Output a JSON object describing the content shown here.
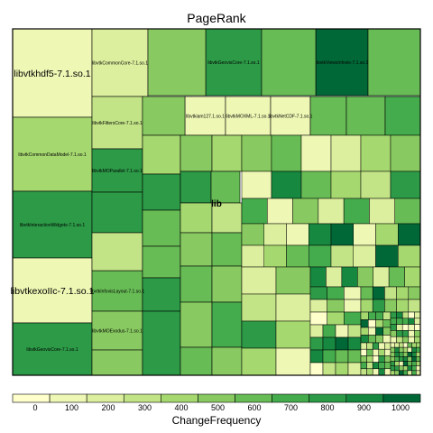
{
  "chart_data": {
    "type": "treemap",
    "title": "PageRank",
    "root_label": "lib",
    "size_metric": "PageRank",
    "color_metric": "ChangeFrequency",
    "legend": {
      "title": "ChangeFrequency",
      "ticks": [
        "0",
        "100",
        "200",
        "300",
        "400",
        "500",
        "600",
        "700",
        "800",
        "900",
        "1000"
      ],
      "colors": [
        "#ffffcc",
        "#eef7b4",
        "#dcef9e",
        "#c2e487",
        "#a6d870",
        "#88ca61",
        "#67bc55",
        "#45ac4d",
        "#2c9a47",
        "#16883f",
        "#006837"
      ],
      "position": "bottom"
    },
    "labeled_cells": [
      {
        "name": "libvtkhdf5-7.1.so.1",
        "change_frequency": 50
      },
      {
        "name": "libvtkCommonDataModel-7.1.so.1",
        "change_frequency": 350
      },
      {
        "name": "libvtkInteractionWidgets-7.1.so.1",
        "change_frequency": 800
      },
      {
        "name": "libvtkexoIIc-7.1.so.1",
        "change_frequency": 50
      },
      {
        "name": "libvtkGeovisCore-7.1.so.1",
        "change_frequency": 780
      },
      {
        "name": "libvtkCommonCore-7.1.so.1",
        "change_frequency": 150
      },
      {
        "name": "libvtkFiltersCore-7.1.so.1",
        "change_frequency": 250
      },
      {
        "name": "libvtkMOParallel-7.1.so.1",
        "change_frequency": 780
      },
      {
        "name": "libvtkInfovisLayout-7.1.so.1",
        "change_frequency": 600
      },
      {
        "name": "libvtkMOExodus-7.1.so.1",
        "change_frequency": 500
      },
      {
        "name": "libvtkGeovisCore-7.1.so.1",
        "change_frequency": 820
      },
      {
        "name": "libvtkViewsInfovis-7.1.so.1",
        "change_frequency": 950
      },
      {
        "name": "libvtkiam127.1.so.1",
        "change_frequency": 50
      },
      {
        "name": "libvtkMOXML-7.1.so.1",
        "change_frequency": 50
      },
      {
        "name": "libvtkNetCDF-7.1.so.1",
        "change_frequency": 50
      }
    ]
  }
}
